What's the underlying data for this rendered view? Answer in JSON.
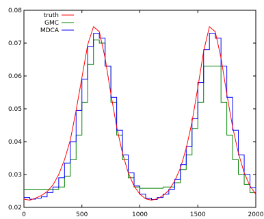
{
  "chart_data": {
    "type": "line",
    "title": "",
    "xlabel": "",
    "ylabel": "",
    "xlim": [
      0,
      2000
    ],
    "ylim": [
      0.02,
      0.08
    ],
    "xticks": [
      0,
      500,
      1000,
      1500,
      2000
    ],
    "yticks": [
      0.02,
      0.03,
      0.04,
      0.05,
      0.06,
      0.07,
      0.08
    ],
    "xtick_labels": [
      "0",
      "500",
      "1000",
      "1500",
      "2000"
    ],
    "ytick_labels": [
      "0.02",
      "0.03",
      "0.04",
      "0.05",
      "0.06",
      "0.07",
      "0.08"
    ],
    "grid": false,
    "legend": "top-left",
    "series": [
      {
        "name": "truth",
        "color": "#ff0000",
        "step": false,
        "points": [
          [
            0,
            0.0225
          ],
          [
            50,
            0.0222
          ],
          [
            100,
            0.0228
          ],
          [
            150,
            0.0236
          ],
          [
            200,
            0.0248
          ],
          [
            250,
            0.0268
          ],
          [
            300,
            0.03
          ],
          [
            350,
            0.0345
          ],
          [
            400,
            0.0405
          ],
          [
            450,
            0.0495
          ],
          [
            500,
            0.0595
          ],
          [
            550,
            0.0695
          ],
          [
            600,
            0.075
          ],
          [
            650,
            0.0735
          ],
          [
            700,
            0.0655
          ],
          [
            750,
            0.0545
          ],
          [
            800,
            0.0445
          ],
          [
            850,
            0.0365
          ],
          [
            900,
            0.0305
          ],
          [
            950,
            0.0265
          ],
          [
            1000,
            0.024
          ],
          [
            1050,
            0.0226
          ],
          [
            1100,
            0.0222
          ],
          [
            1150,
            0.0226
          ],
          [
            1200,
            0.0236
          ],
          [
            1250,
            0.0252
          ],
          [
            1300,
            0.028
          ],
          [
            1350,
            0.032
          ],
          [
            1400,
            0.038
          ],
          [
            1450,
            0.046
          ],
          [
            1500,
            0.0565
          ],
          [
            1550,
            0.0675
          ],
          [
            1600,
            0.075
          ],
          [
            1650,
            0.0735
          ],
          [
            1700,
            0.0655
          ],
          [
            1750,
            0.0545
          ],
          [
            1800,
            0.0445
          ],
          [
            1850,
            0.0365
          ],
          [
            1900,
            0.0305
          ],
          [
            1950,
            0.0265
          ],
          [
            2000,
            0.024
          ]
        ]
      },
      {
        "name": "GMC",
        "color": "#008000",
        "step": true,
        "points": [
          [
            0,
            0.0255
          ],
          [
            300,
            0.0262
          ],
          [
            350,
            0.0295
          ],
          [
            400,
            0.0345
          ],
          [
            450,
            0.042
          ],
          [
            500,
            0.052
          ],
          [
            550,
            0.0635
          ],
          [
            600,
            0.071
          ],
          [
            650,
            0.07
          ],
          [
            700,
            0.063
          ],
          [
            750,
            0.052
          ],
          [
            800,
            0.042
          ],
          [
            850,
            0.0345
          ],
          [
            900,
            0.029
          ],
          [
            950,
            0.0262
          ],
          [
            1000,
            0.0258
          ],
          [
            1100,
            0.0258
          ],
          [
            1200,
            0.0262
          ],
          [
            1300,
            0.0275
          ],
          [
            1350,
            0.0315
          ],
          [
            1400,
            0.036
          ],
          [
            1450,
            0.044
          ],
          [
            1500,
            0.052
          ],
          [
            1550,
            0.063
          ],
          [
            1700,
            0.052
          ],
          [
            1750,
            0.042
          ],
          [
            1800,
            0.0345
          ],
          [
            1850,
            0.03
          ],
          [
            1900,
            0.027
          ],
          [
            1950,
            0.0245
          ],
          [
            2000,
            0.0245
          ]
        ]
      },
      {
        "name": "MDCA",
        "color": "#0000ff",
        "step": true,
        "points": [
          [
            0,
            0.023
          ],
          [
            50,
            0.0225
          ],
          [
            100,
            0.0228
          ],
          [
            150,
            0.0232
          ],
          [
            200,
            0.0245
          ],
          [
            250,
            0.0262
          ],
          [
            300,
            0.029
          ],
          [
            350,
            0.0335
          ],
          [
            400,
            0.04
          ],
          [
            450,
            0.0495
          ],
          [
            500,
            0.059
          ],
          [
            550,
            0.069
          ],
          [
            600,
            0.073
          ],
          [
            650,
            0.0715
          ],
          [
            700,
            0.063
          ],
          [
            750,
            0.0535
          ],
          [
            800,
            0.0435
          ],
          [
            850,
            0.036
          ],
          [
            900,
            0.0305
          ],
          [
            950,
            0.0265
          ],
          [
            1000,
            0.024
          ],
          [
            1050,
            0.0228
          ],
          [
            1100,
            0.0224
          ],
          [
            1150,
            0.023
          ],
          [
            1200,
            0.024
          ],
          [
            1250,
            0.0255
          ],
          [
            1300,
            0.0285
          ],
          [
            1350,
            0.033
          ],
          [
            1400,
            0.0385
          ],
          [
            1450,
            0.047
          ],
          [
            1500,
            0.058
          ],
          [
            1550,
            0.068
          ],
          [
            1600,
            0.073
          ],
          [
            1650,
            0.0715
          ],
          [
            1700,
            0.063
          ],
          [
            1750,
            0.0535
          ],
          [
            1800,
            0.0435
          ],
          [
            1850,
            0.036
          ],
          [
            1900,
            0.03
          ],
          [
            1950,
            0.026
          ],
          [
            2000,
            0.024
          ]
        ]
      }
    ]
  }
}
